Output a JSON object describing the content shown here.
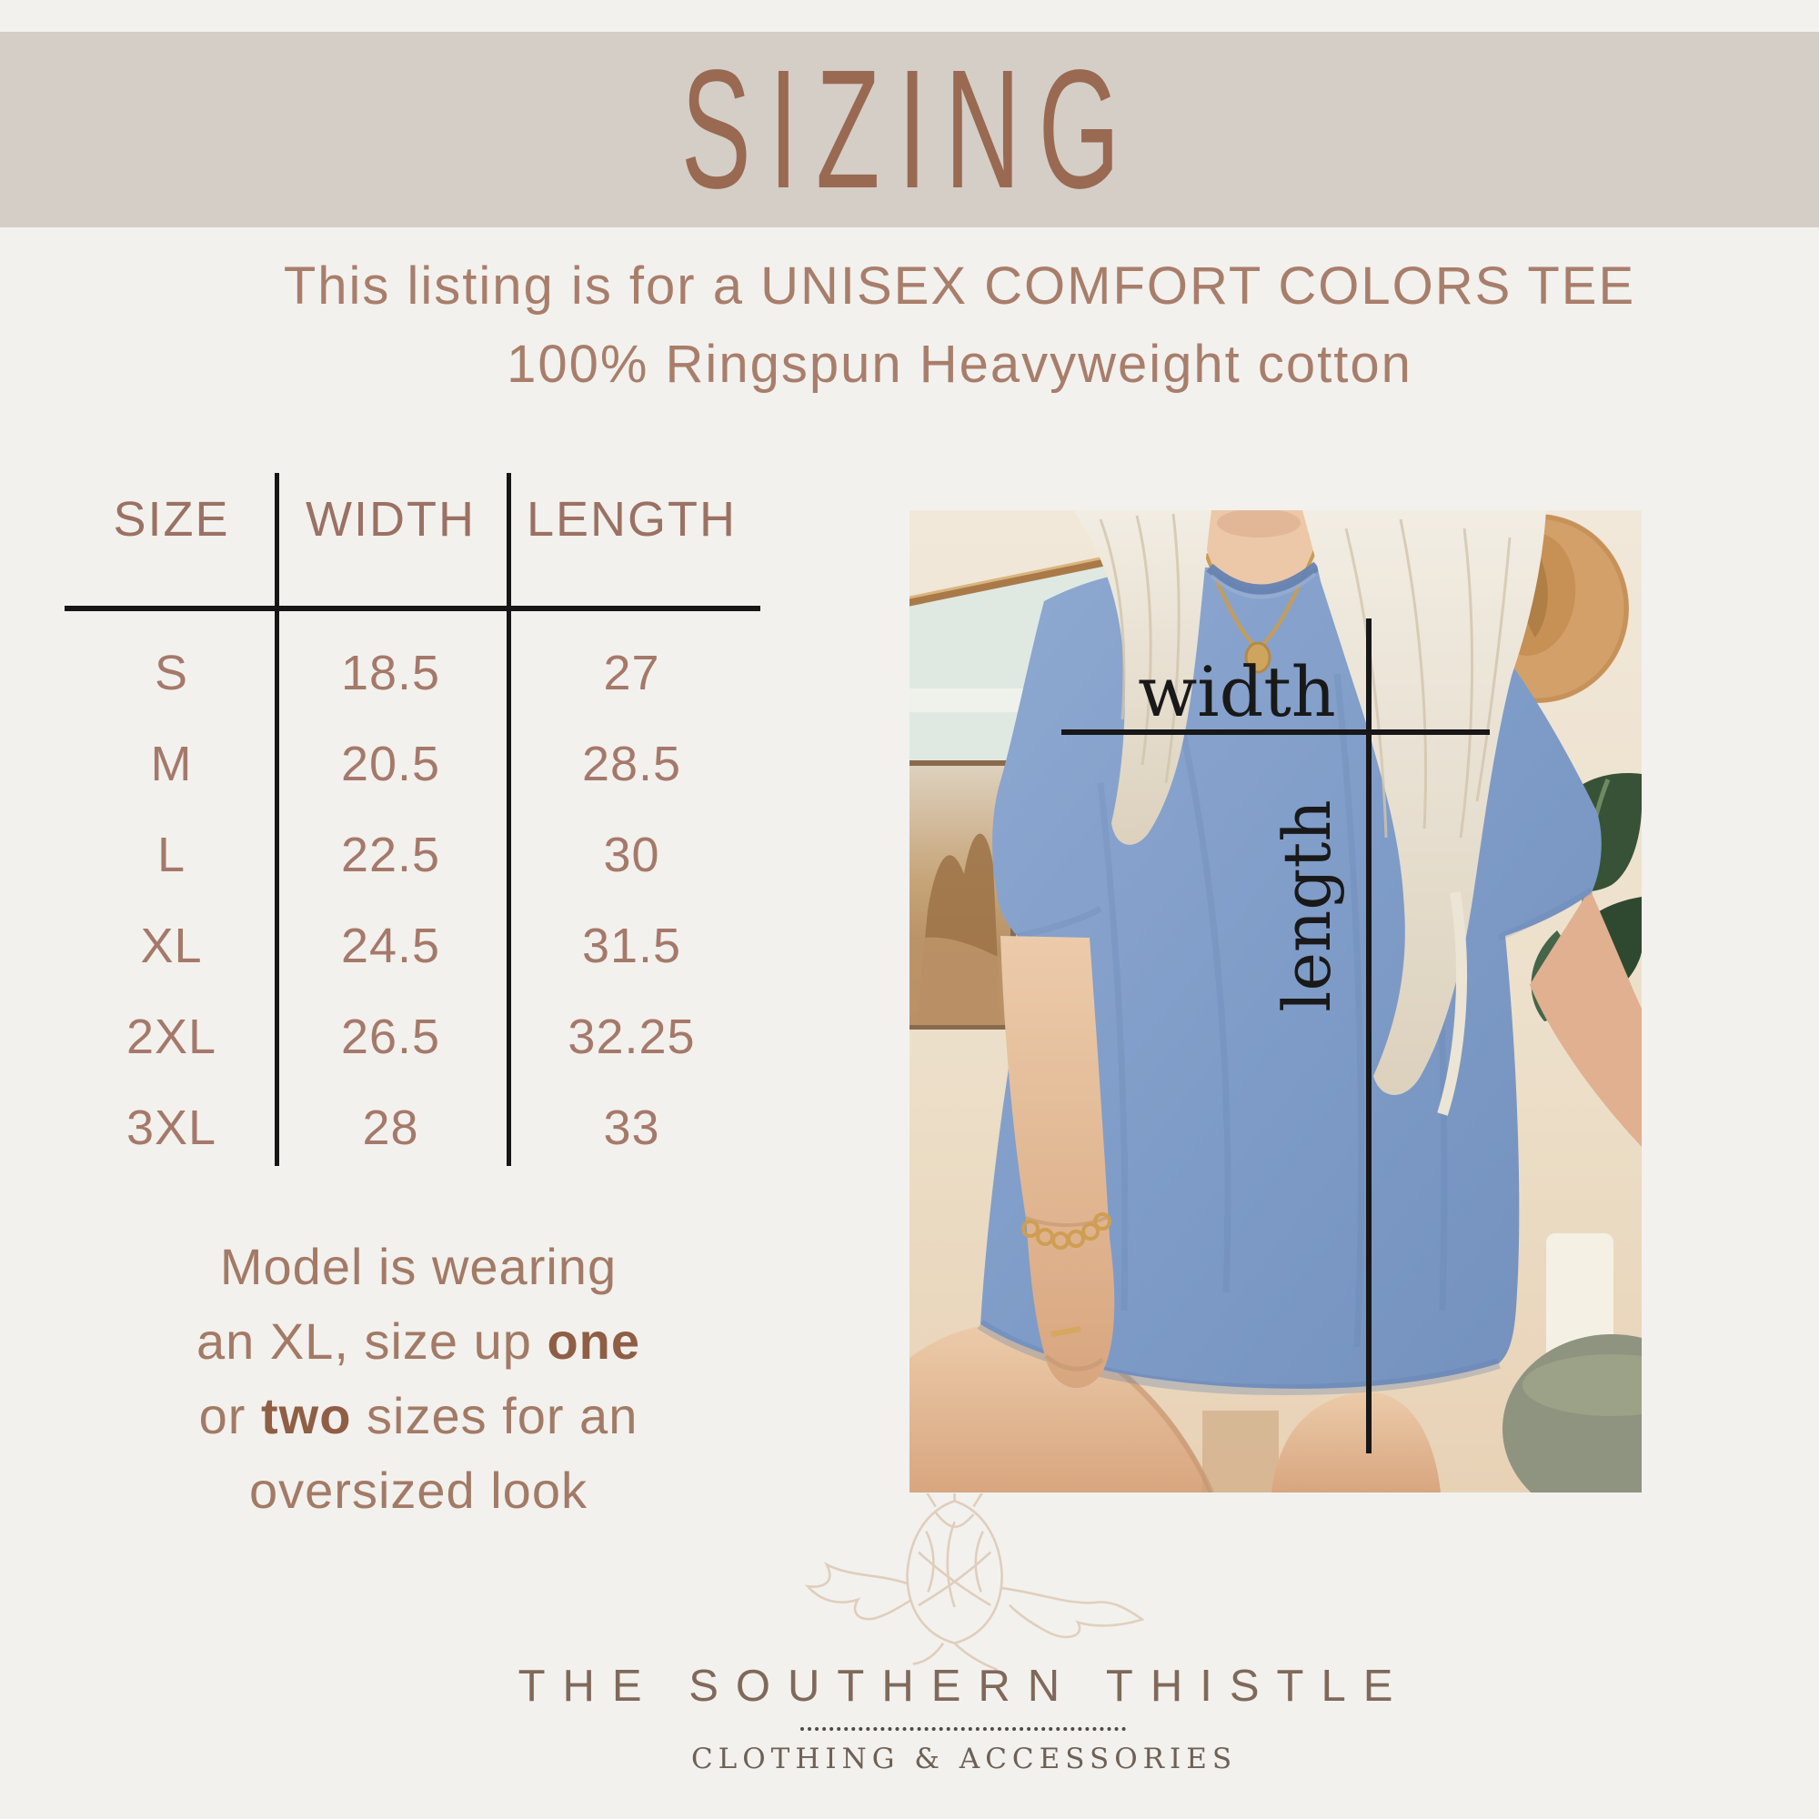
{
  "palette": {
    "background": "#f2f1ee",
    "band": "#d4cec7",
    "title_brown": "#996952",
    "text_brown": "#a87e6b",
    "table_brown": "#a5796a",
    "bold_brown": "#8f5e45",
    "line_black": "#161616",
    "logo_brown": "#80695a",
    "tagline_brown": "#6e6054",
    "tee_blue": "#7f9cc8",
    "hat_tan": "#d3a06a"
  },
  "header": {
    "title": "SIZING"
  },
  "subtitle": {
    "line1": "This listing is for a UNISEX COMFORT COLORS TEE",
    "line2": "100% Ringspun Heavyweight cotton"
  },
  "size_chart": {
    "columns": [
      "SIZE",
      "WIDTH",
      "LENGTH"
    ],
    "rows": [
      {
        "size": "S",
        "width": "18.5",
        "length": "27"
      },
      {
        "size": "M",
        "width": "20.5",
        "length": "28.5"
      },
      {
        "size": "L",
        "width": "22.5",
        "length": "30"
      },
      {
        "size": "XL",
        "width": "24.5",
        "length": "31.5"
      },
      {
        "size": "2XL",
        "width": "26.5",
        "length": "32.25"
      },
      {
        "size": "3XL",
        "width": "28",
        "length": "33"
      }
    ]
  },
  "model_note": {
    "lines": [
      [
        {
          "text": "Model is wearing",
          "bold": false
        }
      ],
      [
        {
          "text": "an XL, size up ",
          "bold": false
        },
        {
          "text": "one",
          "bold": true
        }
      ],
      [
        {
          "text": "or ",
          "bold": false
        },
        {
          "text": "two",
          "bold": true
        },
        {
          "text": " sizes for an",
          "bold": false
        }
      ],
      [
        {
          "text": "oversized look",
          "bold": false
        }
      ]
    ]
  },
  "photo": {
    "width_label": "width",
    "length_label": "length"
  },
  "logo": {
    "name": "THE SOUTHERN THISTLE",
    "tagline": "CLOTHING & ACCESSORIES"
  }
}
